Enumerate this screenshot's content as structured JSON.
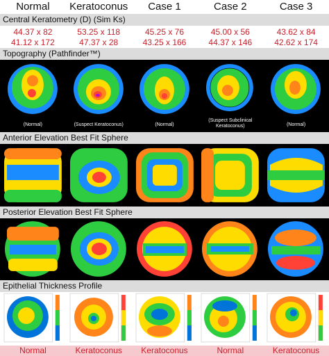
{
  "columns": [
    "Normal",
    "Keratoconus",
    "Case 1",
    "Case 2",
    "Case 3"
  ],
  "sections": {
    "keratometry": "Central Keratometry (D) (Sim Ks)",
    "topography": "Topography (Pathfinder™)",
    "anterior": "Anterior Elevation Best Fit Sphere",
    "posterior": "Posterior Elevation Best Fit Sphere",
    "epithelial": "Epithelial Thickness Profile"
  },
  "sim_ks": [
    {
      "k1": "44.37 x 82",
      "k2": "41.12 x 172"
    },
    {
      "k1": "53.25 x 118",
      "k2": "47.37 x 28"
    },
    {
      "k1": "45.25 x 76",
      "k2": "43.25 x 166"
    },
    {
      "k1": "45.00 x 56",
      "k2": "44.37 x 146"
    },
    {
      "k1": "43.62 x 84",
      "k2": "42.62 x 174"
    }
  ],
  "topography_captions": [
    "(Normal)",
    "(Suspect Keratoconus)",
    "(Normal)",
    "(Suspect Subclinical Keratoconus)",
    "(Normal)"
  ],
  "footer": [
    "Normal",
    "Keratoconus",
    "Keratoconus",
    "Normal",
    "Keratoconus"
  ],
  "colors": {
    "accent_red": "#c8202a",
    "section_bar": "#dcdcdc",
    "footer_bg": "#f6c9cf"
  }
}
